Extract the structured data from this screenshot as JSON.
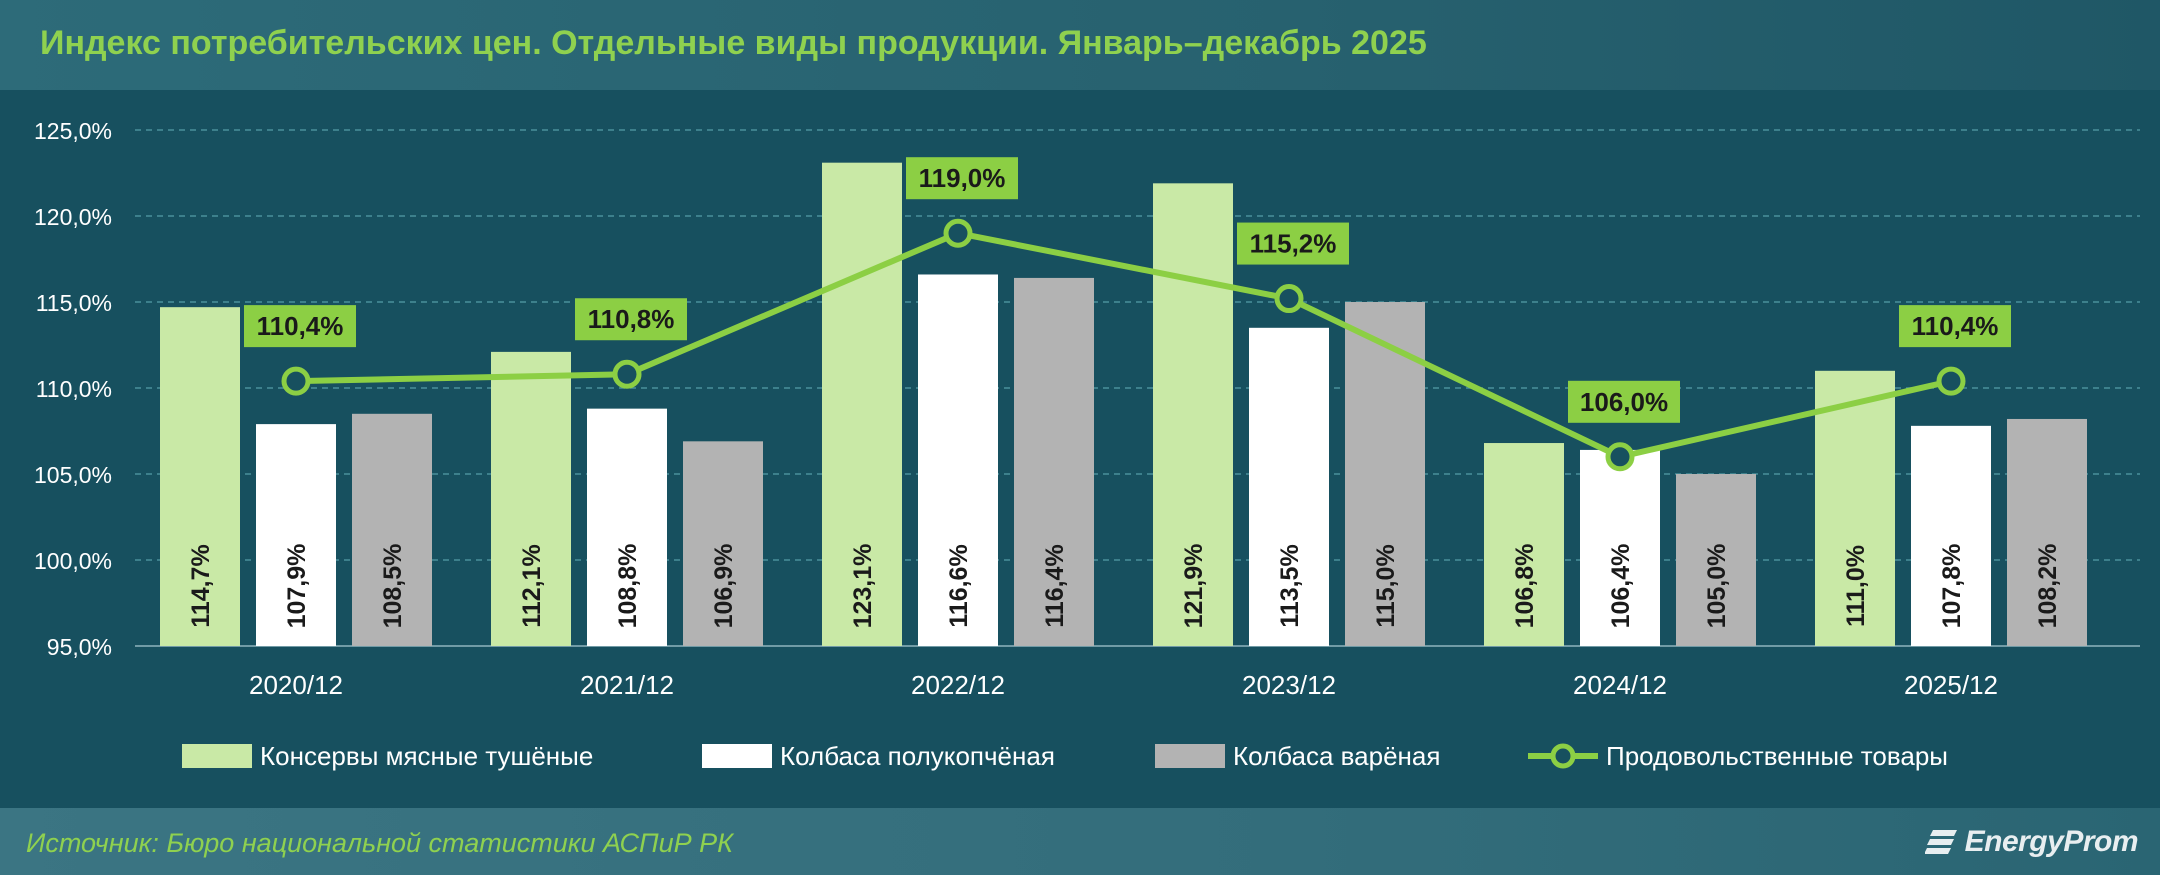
{
  "header": {
    "title": "Индекс потребительских цен. Отдельные виды продукции. Январь–декабрь 2025"
  },
  "footer": {
    "source": "Источник: Бюро национальной статистики АСПиР РК",
    "logo_text": "EnergyProm"
  },
  "colors": {
    "background": "#17505f",
    "header_title": "#8fd14f",
    "series_1": "#c9e9a6",
    "series_2": "#ffffff",
    "series_3": "#b3b3b3",
    "line": "#8ccf44",
    "callout_bg": "#8ccf44",
    "axis_text": "#ffffff",
    "grid": "#4a8f9c"
  },
  "chart_data": {
    "type": "bar",
    "categories": [
      "2020/12",
      "2021/12",
      "2022/12",
      "2023/12",
      "2024/12",
      "2025/12"
    ],
    "series": [
      {
        "name": "Консервы мясные тушёные",
        "type": "bar",
        "values": [
          114.7,
          112.1,
          123.1,
          121.9,
          106.8,
          111.0
        ],
        "labels": [
          "114,7%",
          "112,1%",
          "123,1%",
          "121,9%",
          "106,8%",
          "111,0%"
        ]
      },
      {
        "name": "Колбаса полукопчёная",
        "type": "bar",
        "values": [
          107.9,
          108.8,
          116.6,
          113.5,
          106.4,
          107.8
        ],
        "labels": [
          "107,9%",
          "108,8%",
          "116,6%",
          "113,5%",
          "106,4%",
          "107,8%"
        ]
      },
      {
        "name": "Колбаса варёная",
        "type": "bar",
        "values": [
          108.5,
          106.9,
          116.4,
          115.0,
          105.0,
          108.2
        ],
        "labels": [
          "108,5%",
          "106,9%",
          "116,4%",
          "115,0%",
          "105,0%",
          "108,2%"
        ]
      },
      {
        "name": "Продовольственные товары",
        "type": "line",
        "values": [
          110.4,
          110.8,
          119.0,
          115.2,
          106.0,
          110.4
        ],
        "labels": [
          "110,4%",
          "110,8%",
          "119,0%",
          "115,2%",
          "106,0%",
          "110,4%"
        ]
      }
    ],
    "y_ticks": [
      "95,0%",
      "100,0%",
      "105,0%",
      "110,0%",
      "115,0%",
      "120,0%",
      "125,0%"
    ],
    "y_tick_values": [
      95,
      100,
      105,
      110,
      115,
      120,
      125
    ],
    "ylim": [
      95,
      125
    ],
    "grid": true,
    "grid_style": "dashed",
    "legend_position": "bottom"
  }
}
